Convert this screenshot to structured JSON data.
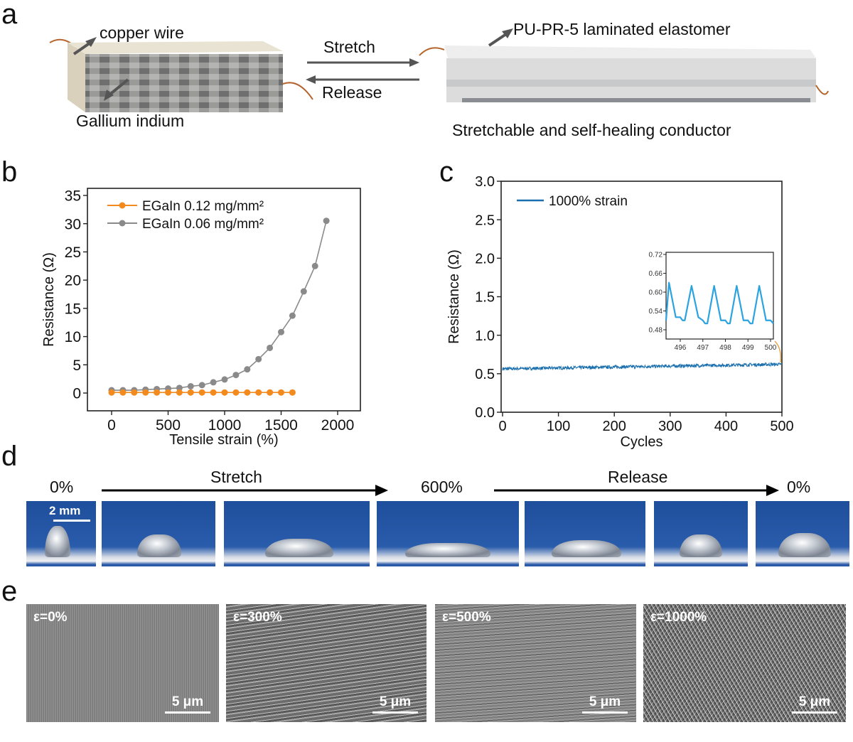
{
  "panels": {
    "a": "a",
    "b": "b",
    "c": "c",
    "d": "d",
    "e": "e"
  },
  "panel_a": {
    "copper_wire": "copper wire",
    "gallium_indium": "Gallium indium",
    "stretch": "Stretch",
    "release": "Release",
    "laminated": "PU-PR-5 laminated elastomer",
    "conductor": "Stretchable and self-healing  conductor"
  },
  "panel_d": {
    "start": "0%",
    "stretch": "Stretch",
    "mid": "600%",
    "release": "Release",
    "end": "0%",
    "scale": "2 mm"
  },
  "panel_e": {
    "images": [
      {
        "label": "ε=0%",
        "scale": "5 μm"
      },
      {
        "label": "ε=300%",
        "scale": "5 μm"
      },
      {
        "label": "ε=500%",
        "scale": "5 μm"
      },
      {
        "label": "ε=1000%",
        "scale": "5 μm"
      }
    ]
  },
  "colors": {
    "orange": "#f28a1e",
    "gray": "#8a8a8a",
    "blue": "#1a6fae",
    "inset_blue": "#2aa3e0"
  },
  "chart_data": [
    {
      "id": "b",
      "type": "line",
      "xlabel": "Tensile strain (%)",
      "ylabel": "Resistance (Ω)",
      "xlim": [
        -150,
        2150
      ],
      "ylim": [
        -3,
        36
      ],
      "xticks": [
        "0",
        "500",
        "1000",
        "1500",
        "2000"
      ],
      "xtick_values": [
        0,
        500,
        1000,
        1500,
        2000
      ],
      "yticks": [
        "0",
        "5",
        "10",
        "15",
        "20",
        "25",
        "30",
        "35"
      ],
      "ytick_values": [
        0,
        5,
        10,
        15,
        20,
        25,
        30,
        35
      ],
      "legend_position": "top-left",
      "series": [
        {
          "name": "EGaIn 0.12 mg/mm²",
          "color": "#f28a1e",
          "x": [
            0,
            100,
            200,
            300,
            400,
            500,
            600,
            700,
            800,
            900,
            1000,
            1100,
            1200,
            1300,
            1400,
            1500,
            1600
          ],
          "y": [
            0.1,
            0.1,
            0.1,
            0.1,
            0.1,
            0.1,
            0.1,
            0.1,
            0.1,
            0.1,
            0.1,
            0.1,
            0.1,
            0.1,
            0.1,
            0.1,
            0.1
          ]
        },
        {
          "name": "EGaIn 0.06 mg/mm²",
          "color": "#8a8a8a",
          "x": [
            0,
            100,
            200,
            300,
            400,
            500,
            600,
            700,
            800,
            900,
            1000,
            1100,
            1200,
            1300,
            1400,
            1500,
            1600,
            1700,
            1800,
            1900
          ],
          "y": [
            0.5,
            0.5,
            0.5,
            0.6,
            0.7,
            0.8,
            0.9,
            1.2,
            1.4,
            1.9,
            2.4,
            3.2,
            4.2,
            6.0,
            8.0,
            10.8,
            13.7,
            18.0,
            22.5,
            30.5
          ]
        }
      ]
    },
    {
      "id": "c",
      "type": "line",
      "xlabel": "Cycles",
      "ylabel": "Resistance (Ω)",
      "xlim": [
        0,
        500
      ],
      "ylim": [
        0,
        3.0
      ],
      "xticks": [
        "0",
        "100",
        "200",
        "300",
        "400",
        "500"
      ],
      "xtick_values": [
        0,
        100,
        200,
        300,
        400,
        500
      ],
      "yticks": [
        "0.0",
        "0.5",
        "1.0",
        "1.5",
        "2.0",
        "2.5",
        "3.0"
      ],
      "ytick_values": [
        0,
        0.5,
        1.0,
        1.5,
        2.0,
        2.5,
        3.0
      ],
      "legend_position": "top-left",
      "series": [
        {
          "name": "1000% strain",
          "color": "#1a6fae",
          "baseline_start": 0.5,
          "baseline_end": 0.56,
          "band_halfwidth": 0.07
        }
      ],
      "inset": {
        "xlim": [
          495.2,
          500.3
        ],
        "ylim": [
          0.46,
          0.72
        ],
        "xticks": [
          "496",
          "497",
          "498",
          "499",
          "500"
        ],
        "xtick_values": [
          496,
          497,
          498,
          499,
          500
        ],
        "yticks": [
          "0.48",
          "0.54",
          "0.60",
          "0.66",
          "0.72"
        ],
        "ytick_values": [
          0.48,
          0.54,
          0.6,
          0.66,
          0.72
        ],
        "x": [
          495.2,
          495.5,
          495.8,
          496.0,
          496.1,
          496.2,
          496.5,
          496.8,
          497.0,
          497.1,
          497.2,
          497.5,
          497.8,
          498.0,
          498.1,
          498.2,
          498.5,
          498.8,
          499.0,
          499.1,
          499.2,
          499.5,
          499.8,
          500.0,
          500.3
        ],
        "y": [
          0.51,
          0.63,
          0.52,
          0.52,
          0.51,
          0.51,
          0.62,
          0.52,
          0.51,
          0.5,
          0.5,
          0.62,
          0.51,
          0.51,
          0.5,
          0.5,
          0.62,
          0.51,
          0.51,
          0.5,
          0.5,
          0.62,
          0.51,
          0.51,
          0.5
        ]
      }
    }
  ]
}
